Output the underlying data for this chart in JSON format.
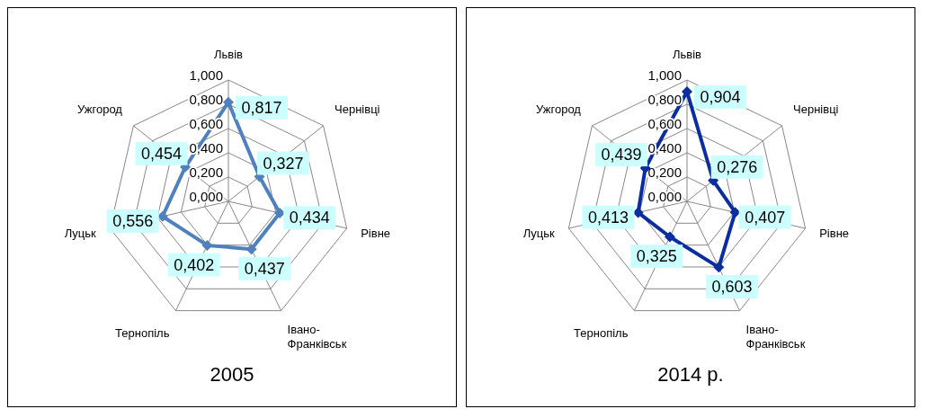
{
  "chart_data": [
    {
      "type": "radar",
      "title": "2005",
      "categories": [
        "Львів",
        "Чернівці",
        "Рівне",
        "Івано-Франківськ",
        "Тернопіль",
        "Луцьк",
        "Ужгород"
      ],
      "series": [
        {
          "color": "#4f81bd",
          "values": [
            0.817,
            0.327,
            0.434,
            0.437,
            0.402,
            0.556,
            0.454
          ],
          "value_labels": [
            "0,817",
            "0,327",
            "0,434",
            "0,437",
            "0,402",
            "0,556",
            "0,454"
          ]
        }
      ],
      "ylim": [
        0,
        1
      ],
      "yticks": [
        {
          "value": 0,
          "label": "0,000"
        },
        {
          "value": 0.2,
          "label": "0,200"
        },
        {
          "value": 0.4,
          "label": "0,400"
        },
        {
          "value": 0.6,
          "label": "0,600"
        },
        {
          "value": 0.8,
          "label": "0,800"
        },
        {
          "value": 1,
          "label": "1,000"
        }
      ],
      "grid": true,
      "marker": "diamond",
      "legend": false
    },
    {
      "type": "radar",
      "title": "2014 р.",
      "categories": [
        "Львів",
        "Чернівці",
        "Рівне",
        "Івано-Франківськ",
        "Тернопіль",
        "Луцьк",
        "Ужгород"
      ],
      "series": [
        {
          "color": "#0a2ea0",
          "values": [
            0.904,
            0.276,
            0.407,
            0.603,
            0.325,
            0.413,
            0.439
          ],
          "value_labels": [
            "0,904",
            "0,276",
            "0,407",
            "0,603",
            "0,325",
            "0,413",
            "0,439"
          ]
        }
      ],
      "ylim": [
        0,
        1
      ],
      "yticks": [
        {
          "value": 0,
          "label": "0,000"
        },
        {
          "value": 0.2,
          "label": "0,200"
        },
        {
          "value": 0.4,
          "label": "0,400"
        },
        {
          "value": 0.6,
          "label": "0,600"
        },
        {
          "value": 0.8,
          "label": "0,800"
        },
        {
          "value": 1,
          "label": "1,000"
        }
      ],
      "grid": true,
      "marker": "diamond",
      "legend": false
    }
  ]
}
